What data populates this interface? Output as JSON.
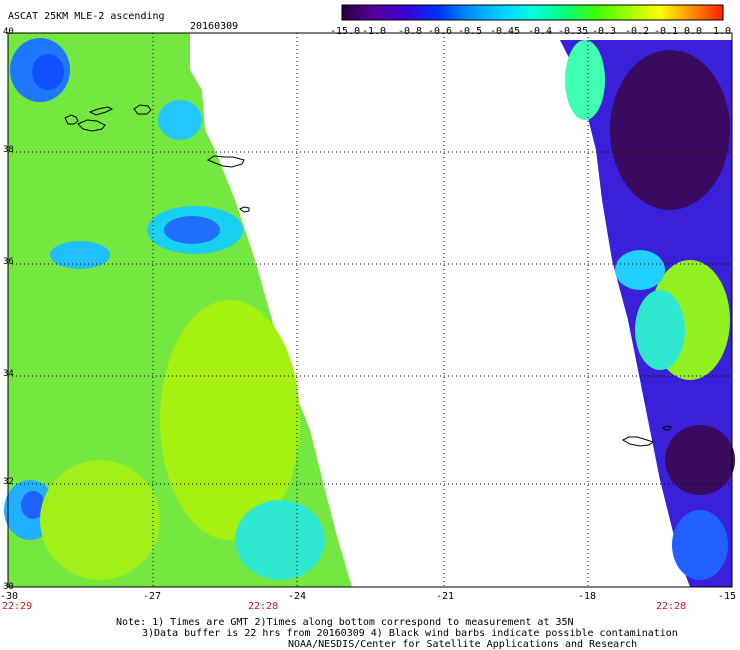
{
  "title": "ASCAT 25KM MLE-2 ascending",
  "date": "20160309",
  "colorbar": {
    "ticks": [
      "-15.0",
      "-1.0",
      "-0.8",
      "-0.6",
      "-0.5",
      "-0.45",
      "-0.4",
      "-0.35",
      "-0.3",
      "-0.2",
      "-0.1",
      "0.0",
      "1.0"
    ],
    "colors": [
      "#2a0038",
      "#5500a0",
      "#3a00d0",
      "#0030ff",
      "#0090ff",
      "#00d0ff",
      "#00ffe0",
      "#00ff80",
      "#40ff00",
      "#a0ff00",
      "#ffff00",
      "#ff9000",
      "#ff2000"
    ]
  },
  "lat_labels": [
    "40",
    "38",
    "36",
    "34",
    "32",
    "30"
  ],
  "lon_labels": [
    "-30",
    "-27",
    "-24",
    "-21",
    "-18",
    "-15"
  ],
  "time_labels": [
    "22:29",
    "22:28",
    "22:28"
  ],
  "notes": {
    "line1": "Note: 1) Times are GMT 2)Times along bottom correspond to measurement at 35N",
    "line2": "3)Data buffer is 22 hrs from 20160309 4) Black wind barbs indicate possible contamination",
    "line3": "NOAA/NESDIS/Center for Satellite Applications and Research"
  }
}
